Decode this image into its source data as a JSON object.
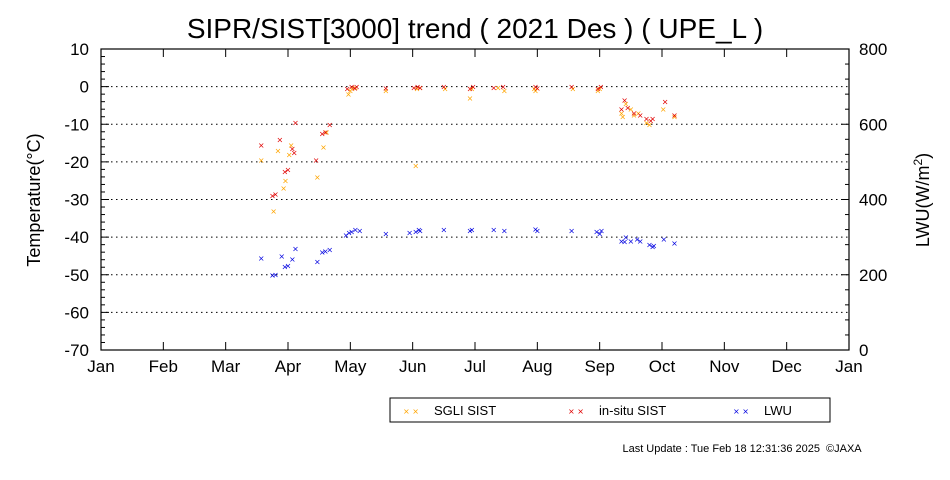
{
  "chart_data": {
    "type": "scatter",
    "title": "SIPR/SIST[3000] trend ( 2021 Des ) ( UPE_L )",
    "ylabel": "Temperature(°C)",
    "y2label_main": "LWU(W/m",
    "y2label_sup": "2",
    "y2label_end": ")",
    "ylim": [
      -70,
      10
    ],
    "y2lim": [
      0,
      800
    ],
    "yticks": [
      "10",
      "0",
      "-10",
      "-20",
      "-30",
      "-40",
      "-50",
      "-60",
      "-70"
    ],
    "y2ticks": [
      "800",
      "600",
      "400",
      "200",
      "0"
    ],
    "months": [
      "Jan",
      "Feb",
      "Mar",
      "Apr",
      "May",
      "Jun",
      "Jul",
      "Aug",
      "Sep",
      "Oct",
      "Nov",
      "Dec",
      "Jan"
    ],
    "grid": "horizontal dotted",
    "legend_placement": "bottom-right",
    "series": [
      {
        "name": "SGLI SIST",
        "axis": "left",
        "color": "#ffa500",
        "points": [
          [
            2.57,
            -19.5
          ],
          [
            2.77,
            -33
          ],
          [
            2.84,
            -17
          ],
          [
            2.93,
            -27
          ],
          [
            2.96,
            -25
          ],
          [
            3.02,
            -18
          ],
          [
            3.05,
            -15.5
          ],
          [
            3.47,
            -24
          ],
          [
            3.57,
            -16
          ],
          [
            3.62,
            -12
          ],
          [
            3.97,
            -2
          ],
          [
            4.0,
            -1
          ],
          [
            4.03,
            -0.5
          ],
          [
            4.08,
            -0.2
          ],
          [
            4.57,
            -1
          ],
          [
            5.05,
            -21
          ],
          [
            5.07,
            -0.5
          ],
          [
            5.12,
            -0.2
          ],
          [
            5.52,
            -0.5
          ],
          [
            5.92,
            -3
          ],
          [
            5.95,
            -0.5
          ],
          [
            6.37,
            -0.2
          ],
          [
            6.47,
            -1
          ],
          [
            6.95,
            -0.5
          ],
          [
            6.97,
            -1
          ],
          [
            7.57,
            -0.5
          ],
          [
            7.97,
            -1
          ],
          [
            8.0,
            -0.5
          ],
          [
            8.35,
            -7
          ],
          [
            8.37,
            -8
          ],
          [
            8.42,
            -4.5
          ],
          [
            8.5,
            -6
          ],
          [
            8.55,
            -7.5
          ],
          [
            8.62,
            -7
          ],
          [
            8.75,
            -9.5
          ],
          [
            8.8,
            -10
          ],
          [
            9.02,
            -6
          ],
          [
            9.2,
            -8
          ]
        ]
      },
      {
        "name": "in-situ SIST",
        "axis": "left",
        "color": "#e00000",
        "points": [
          [
            2.57,
            -15.5
          ],
          [
            2.75,
            -29
          ],
          [
            2.8,
            -28.5
          ],
          [
            2.87,
            -14
          ],
          [
            2.95,
            -22.5
          ],
          [
            3.0,
            -22
          ],
          [
            3.12,
            -9.5
          ],
          [
            3.07,
            -16.5
          ],
          [
            3.1,
            -17.5
          ],
          [
            3.45,
            -19.5
          ],
          [
            3.55,
            -12.5
          ],
          [
            3.6,
            -12
          ],
          [
            3.67,
            -10
          ],
          [
            3.95,
            -0.5
          ],
          [
            4.02,
            0
          ],
          [
            4.07,
            -0.3
          ],
          [
            4.1,
            0
          ],
          [
            4.57,
            -0.3
          ],
          [
            5.02,
            -0.2
          ],
          [
            5.08,
            0
          ],
          [
            5.12,
            -0.2
          ],
          [
            5.5,
            0
          ],
          [
            5.92,
            -0.5
          ],
          [
            5.97,
            0
          ],
          [
            6.3,
            -0.2
          ],
          [
            6.45,
            0
          ],
          [
            6.97,
            0
          ],
          [
            7.0,
            -0.3
          ],
          [
            7.55,
            0
          ],
          [
            7.97,
            -0.5
          ],
          [
            8.02,
            0
          ],
          [
            8.35,
            -6
          ],
          [
            8.4,
            -3.5
          ],
          [
            8.45,
            -5.5
          ],
          [
            8.55,
            -7
          ],
          [
            8.65,
            -7.5
          ],
          [
            8.75,
            -8.5
          ],
          [
            8.82,
            -9
          ],
          [
            8.85,
            -8.5
          ],
          [
            9.05,
            -4
          ],
          [
            9.2,
            -7.5
          ]
        ]
      },
      {
        "name": "LWU",
        "axis": "right",
        "color": "#0000e0",
        "points": [
          [
            2.57,
            245
          ],
          [
            2.75,
            200
          ],
          [
            2.8,
            201
          ],
          [
            2.9,
            250
          ],
          [
            2.95,
            222
          ],
          [
            3.0,
            225
          ],
          [
            3.07,
            242
          ],
          [
            3.12,
            270
          ],
          [
            3.47,
            235
          ],
          [
            3.55,
            260
          ],
          [
            3.6,
            263
          ],
          [
            3.67,
            267
          ],
          [
            3.93,
            305
          ],
          [
            3.98,
            312
          ],
          [
            4.02,
            315
          ],
          [
            4.08,
            320
          ],
          [
            4.15,
            318
          ],
          [
            4.57,
            310
          ],
          [
            4.95,
            312
          ],
          [
            5.05,
            315
          ],
          [
            5.1,
            320
          ],
          [
            5.12,
            318
          ],
          [
            5.5,
            320
          ],
          [
            5.92,
            318
          ],
          [
            5.95,
            320
          ],
          [
            6.3,
            320
          ],
          [
            6.47,
            318
          ],
          [
            6.97,
            322
          ],
          [
            7.0,
            318
          ],
          [
            7.55,
            318
          ],
          [
            7.95,
            315
          ],
          [
            8.0,
            310
          ],
          [
            8.03,
            318
          ],
          [
            8.35,
            290
          ],
          [
            8.4,
            288
          ],
          [
            8.42,
            300
          ],
          [
            8.5,
            290
          ],
          [
            8.6,
            295
          ],
          [
            8.65,
            290
          ],
          [
            8.8,
            280
          ],
          [
            8.85,
            275
          ],
          [
            8.87,
            278
          ],
          [
            9.03,
            295
          ],
          [
            9.2,
            285
          ]
        ]
      }
    ]
  },
  "footer": {
    "last_update": "Last Update : Tue Feb 18 12:31:36 2025",
    "copyright": "©JAXA"
  }
}
